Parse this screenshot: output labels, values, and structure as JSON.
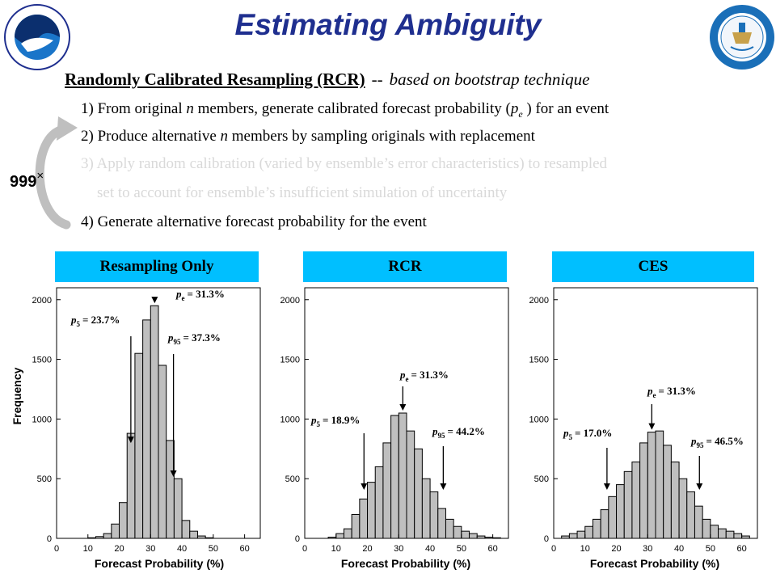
{
  "title": "Estimating Ambiguity",
  "heading": {
    "main": "Randomly Calibrated Resampling (RCR)",
    "dash": "--",
    "note": "based on bootstrap technique"
  },
  "steps": [
    {
      "pre": "1) From original ",
      "em": "n",
      "post": " members, generate calibrated forecast probability (",
      "p": "p",
      "sub": "e",
      "tail": " ) for an event",
      "faded": false
    },
    {
      "pre": "2) Produce alternative ",
      "em": "n",
      "post": " members by sampling originals with replacement",
      "faded": false
    },
    {
      "text": "3) Apply random calibration (varied by ensemble’s error characteristics) to resampled",
      "faded": true
    },
    {
      "text": "set to account for ensemble’s insufficient simulation of uncertainty",
      "faded": true
    },
    {
      "text": "4) Generate alternative forecast probability for the event",
      "faded": false
    }
  ],
  "loop": {
    "count": "999",
    "times": "×"
  },
  "y_axis_label": "Frequency",
  "colors": {
    "title": "#1f2f8f",
    "header": "#00bfff",
    "bar": "#bfbfbf",
    "faded": "#d9d9d9"
  },
  "chart_data": [
    {
      "type": "bar",
      "title": "Resampling Only",
      "xlabel": "Forecast Probability (%)",
      "ylabel": "Frequency",
      "xlim": [
        0,
        65
      ],
      "ylim": [
        0,
        2100
      ],
      "xticks": [
        0,
        10,
        20,
        30,
        40,
        50,
        60
      ],
      "yticks": [
        0,
        500,
        1000,
        1500,
        2000
      ],
      "bin_width": 2.5,
      "bin_starts": [
        10,
        12.5,
        15,
        17.5,
        20,
        22.5,
        25,
        27.5,
        30,
        32.5,
        35,
        37.5,
        40,
        42.5,
        45,
        47.5,
        50,
        52.5,
        55
      ],
      "values": [
        5,
        15,
        40,
        120,
        300,
        880,
        1550,
        1830,
        1950,
        1450,
        820,
        500,
        150,
        60,
        20,
        5,
        0,
        0,
        0
      ],
      "annotations": [
        {
          "label": "p",
          "sub": "5",
          "value": "= 23.7%",
          "x": 23.7
        },
        {
          "label": "p",
          "sub": "e",
          "value": "= 31.3%",
          "x": 31.3
        },
        {
          "label": "p",
          "sub": "95",
          "value": "= 37.3%",
          "x": 37.3
        }
      ]
    },
    {
      "type": "bar",
      "title": "RCR",
      "xlabel": "Forecast Probability (%)",
      "ylabel": "Frequency",
      "xlim": [
        0,
        65
      ],
      "ylim": [
        0,
        2100
      ],
      "xticks": [
        0,
        10,
        20,
        30,
        40,
        50,
        60
      ],
      "yticks": [
        0,
        500,
        1000,
        1500,
        2000
      ],
      "bin_width": 2.5,
      "bin_starts": [
        7.5,
        10,
        12.5,
        15,
        17.5,
        20,
        22.5,
        25,
        27.5,
        30,
        32.5,
        35,
        37.5,
        40,
        42.5,
        45,
        47.5,
        50,
        52.5,
        55,
        57.5,
        60
      ],
      "values": [
        10,
        40,
        80,
        200,
        330,
        470,
        600,
        800,
        1030,
        1050,
        900,
        750,
        500,
        390,
        250,
        160,
        100,
        60,
        40,
        20,
        10,
        5
      ],
      "annotations": [
        {
          "label": "p",
          "sub": "5",
          "value": "= 18.9%",
          "x": 18.9
        },
        {
          "label": "p",
          "sub": "e",
          "value": "= 31.3%",
          "x": 31.3
        },
        {
          "label": "p",
          "sub": "95",
          "value": "= 44.2%",
          "x": 44.2
        }
      ]
    },
    {
      "type": "bar",
      "title": "CES",
      "xlabel": "Forecast Probability (%)",
      "ylabel": "Frequency",
      "xlim": [
        0,
        65
      ],
      "ylim": [
        0,
        2100
      ],
      "xticks": [
        0,
        10,
        20,
        30,
        40,
        50,
        60
      ],
      "yticks": [
        0,
        500,
        1000,
        1500,
        2000
      ],
      "bin_width": 2.5,
      "bin_starts": [
        2.5,
        5,
        7.5,
        10,
        12.5,
        15,
        17.5,
        20,
        22.5,
        25,
        27.5,
        30,
        32.5,
        35,
        37.5,
        40,
        42.5,
        45,
        47.5,
        50,
        52.5,
        55,
        57.5,
        60
      ],
      "values": [
        20,
        40,
        60,
        100,
        160,
        240,
        350,
        450,
        560,
        640,
        800,
        890,
        900,
        780,
        640,
        500,
        390,
        270,
        160,
        110,
        80,
        60,
        40,
        20
      ],
      "annotations": [
        {
          "label": "p",
          "sub": "5",
          "value": "= 17.0%",
          "x": 17.0
        },
        {
          "label": "p",
          "sub": "e",
          "value": "= 31.3%",
          "x": 31.3
        },
        {
          "label": "p",
          "sub": "95",
          "value": "= 46.5%",
          "x": 46.5
        }
      ]
    }
  ]
}
